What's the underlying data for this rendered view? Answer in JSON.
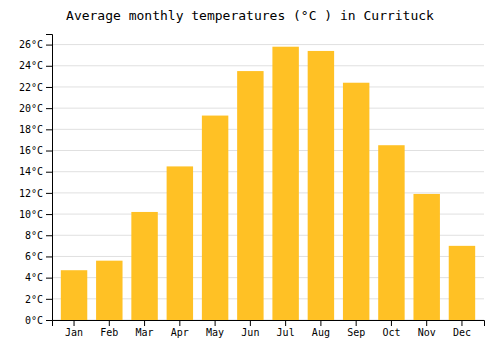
{
  "chart_data": {
    "type": "bar",
    "title": "Average monthly temperatures (°C ) in Currituck",
    "categories": [
      "Jan",
      "Feb",
      "Mar",
      "Apr",
      "May",
      "Jun",
      "Jul",
      "Aug",
      "Sep",
      "Oct",
      "Nov",
      "Dec"
    ],
    "values": [
      4.7,
      5.6,
      10.2,
      14.5,
      19.3,
      23.5,
      25.8,
      25.4,
      22.4,
      16.5,
      11.9,
      7.0
    ],
    "color": "#FFC125",
    "ylim": [
      0,
      27
    ],
    "yticks": [
      {
        "value": 0,
        "label": "0°C"
      },
      {
        "value": 2,
        "label": "2°C"
      },
      {
        "value": 4,
        "label": "4°C"
      },
      {
        "value": 6,
        "label": "6°C"
      },
      {
        "value": 8,
        "label": "8°C"
      },
      {
        "value": 10,
        "label": "10°C"
      },
      {
        "value": 12,
        "label": "12°C"
      },
      {
        "value": 14,
        "label": "14°C"
      },
      {
        "value": 16,
        "label": "16°C"
      },
      {
        "value": 18,
        "label": "18°C"
      },
      {
        "value": 20,
        "label": "20°C"
      },
      {
        "value": 22,
        "label": "22°C"
      },
      {
        "value": 24,
        "label": "24°C"
      },
      {
        "value": 26,
        "label": "26°C"
      }
    ],
    "grid": true
  }
}
